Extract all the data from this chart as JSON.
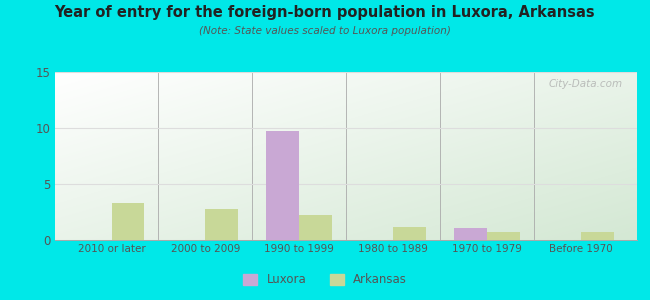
{
  "title": "Year of entry for the foreign-born population in Luxora, Arkansas",
  "subtitle": "(Note: State values scaled to Luxora population)",
  "categories": [
    "2010 or later",
    "2000 to 2009",
    "1990 to 1999",
    "1980 to 1989",
    "1970 to 1979",
    "Before 1970"
  ],
  "luxora_values": [
    0,
    0,
    9.7,
    0,
    1.1,
    0
  ],
  "arkansas_values": [
    3.3,
    2.8,
    2.2,
    1.2,
    0.7,
    0.7
  ],
  "luxora_color": "#c9a8d4",
  "arkansas_color": "#c8d898",
  "ylim": [
    0,
    15
  ],
  "yticks": [
    0,
    5,
    10,
    15
  ],
  "bar_width": 0.35,
  "outer_bg": "#00e8e8",
  "title_color": "#222222",
  "subtitle_color": "#555555",
  "tick_color": "#555555",
  "grid_color": "#dddddd",
  "watermark_text": "City-Data.com",
  "legend_labels": [
    "Luxora",
    "Arkansas"
  ]
}
